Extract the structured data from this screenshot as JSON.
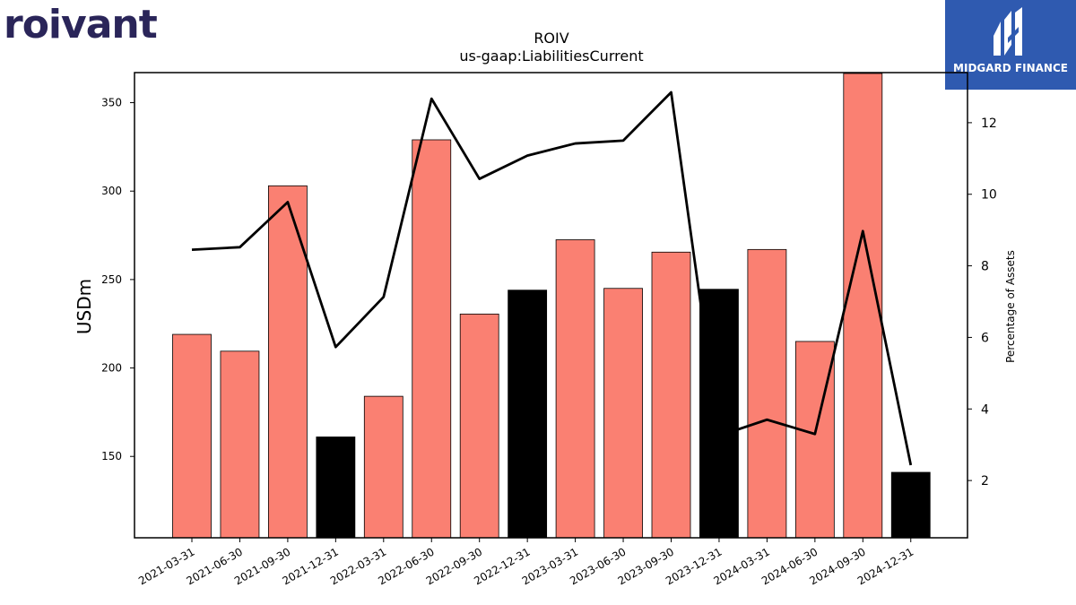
{
  "logos": {
    "left_text": "roivant",
    "right_text": "MIDGARD FINANCE",
    "right_bg": "#2f5ab0",
    "left_color": "#2a2559"
  },
  "chart_data": {
    "type": "bar",
    "title": "ROIV",
    "subtitle": "us-gaap:LiabilitiesCurrent",
    "ylabel": "USDm",
    "y2label": "Percentage of Assets",
    "categories": [
      "2021-03-31",
      "2021-06-30",
      "2021-09-30",
      "2021-12-31",
      "2022-03-31",
      "2022-06-30",
      "2022-09-30",
      "2022-12-31",
      "2023-03-31",
      "2023-06-30",
      "2023-09-30",
      "2023-12-31",
      "2024-03-31",
      "2024-06-30",
      "2024-09-30",
      "2024-12-31"
    ],
    "series": [
      {
        "type": "bar",
        "axis": "left",
        "values": [
          219,
          209.5,
          303,
          161,
          184,
          329,
          230.5,
          244,
          272.5,
          245,
          265.5,
          244.5,
          267,
          215,
          366.5,
          141
        ],
        "colors": [
          "#fa8072",
          "#fa8072",
          "#fa8072",
          "#000000",
          "#fa8072",
          "#fa8072",
          "#fa8072",
          "#000000",
          "#fa8072",
          "#fa8072",
          "#fa8072",
          "#000000",
          "#fa8072",
          "#fa8072",
          "#fa8072",
          "#000000"
        ]
      },
      {
        "type": "line",
        "axis": "right",
        "color": "#000000",
        "values": [
          8.45,
          8.52,
          9.78,
          5.73,
          7.13,
          12.67,
          10.43,
          11.08,
          11.42,
          11.5,
          12.85,
          3.25,
          3.7,
          3.3,
          8.97,
          2.43
        ]
      }
    ],
    "ylim": [
      104,
      367
    ],
    "y_ticks": [
      150,
      200,
      250,
      300,
      350
    ],
    "y2lim": [
      0.4,
      13.4
    ],
    "y2_ticks": [
      2,
      4,
      6,
      8,
      10,
      12
    ],
    "grid": false
  }
}
